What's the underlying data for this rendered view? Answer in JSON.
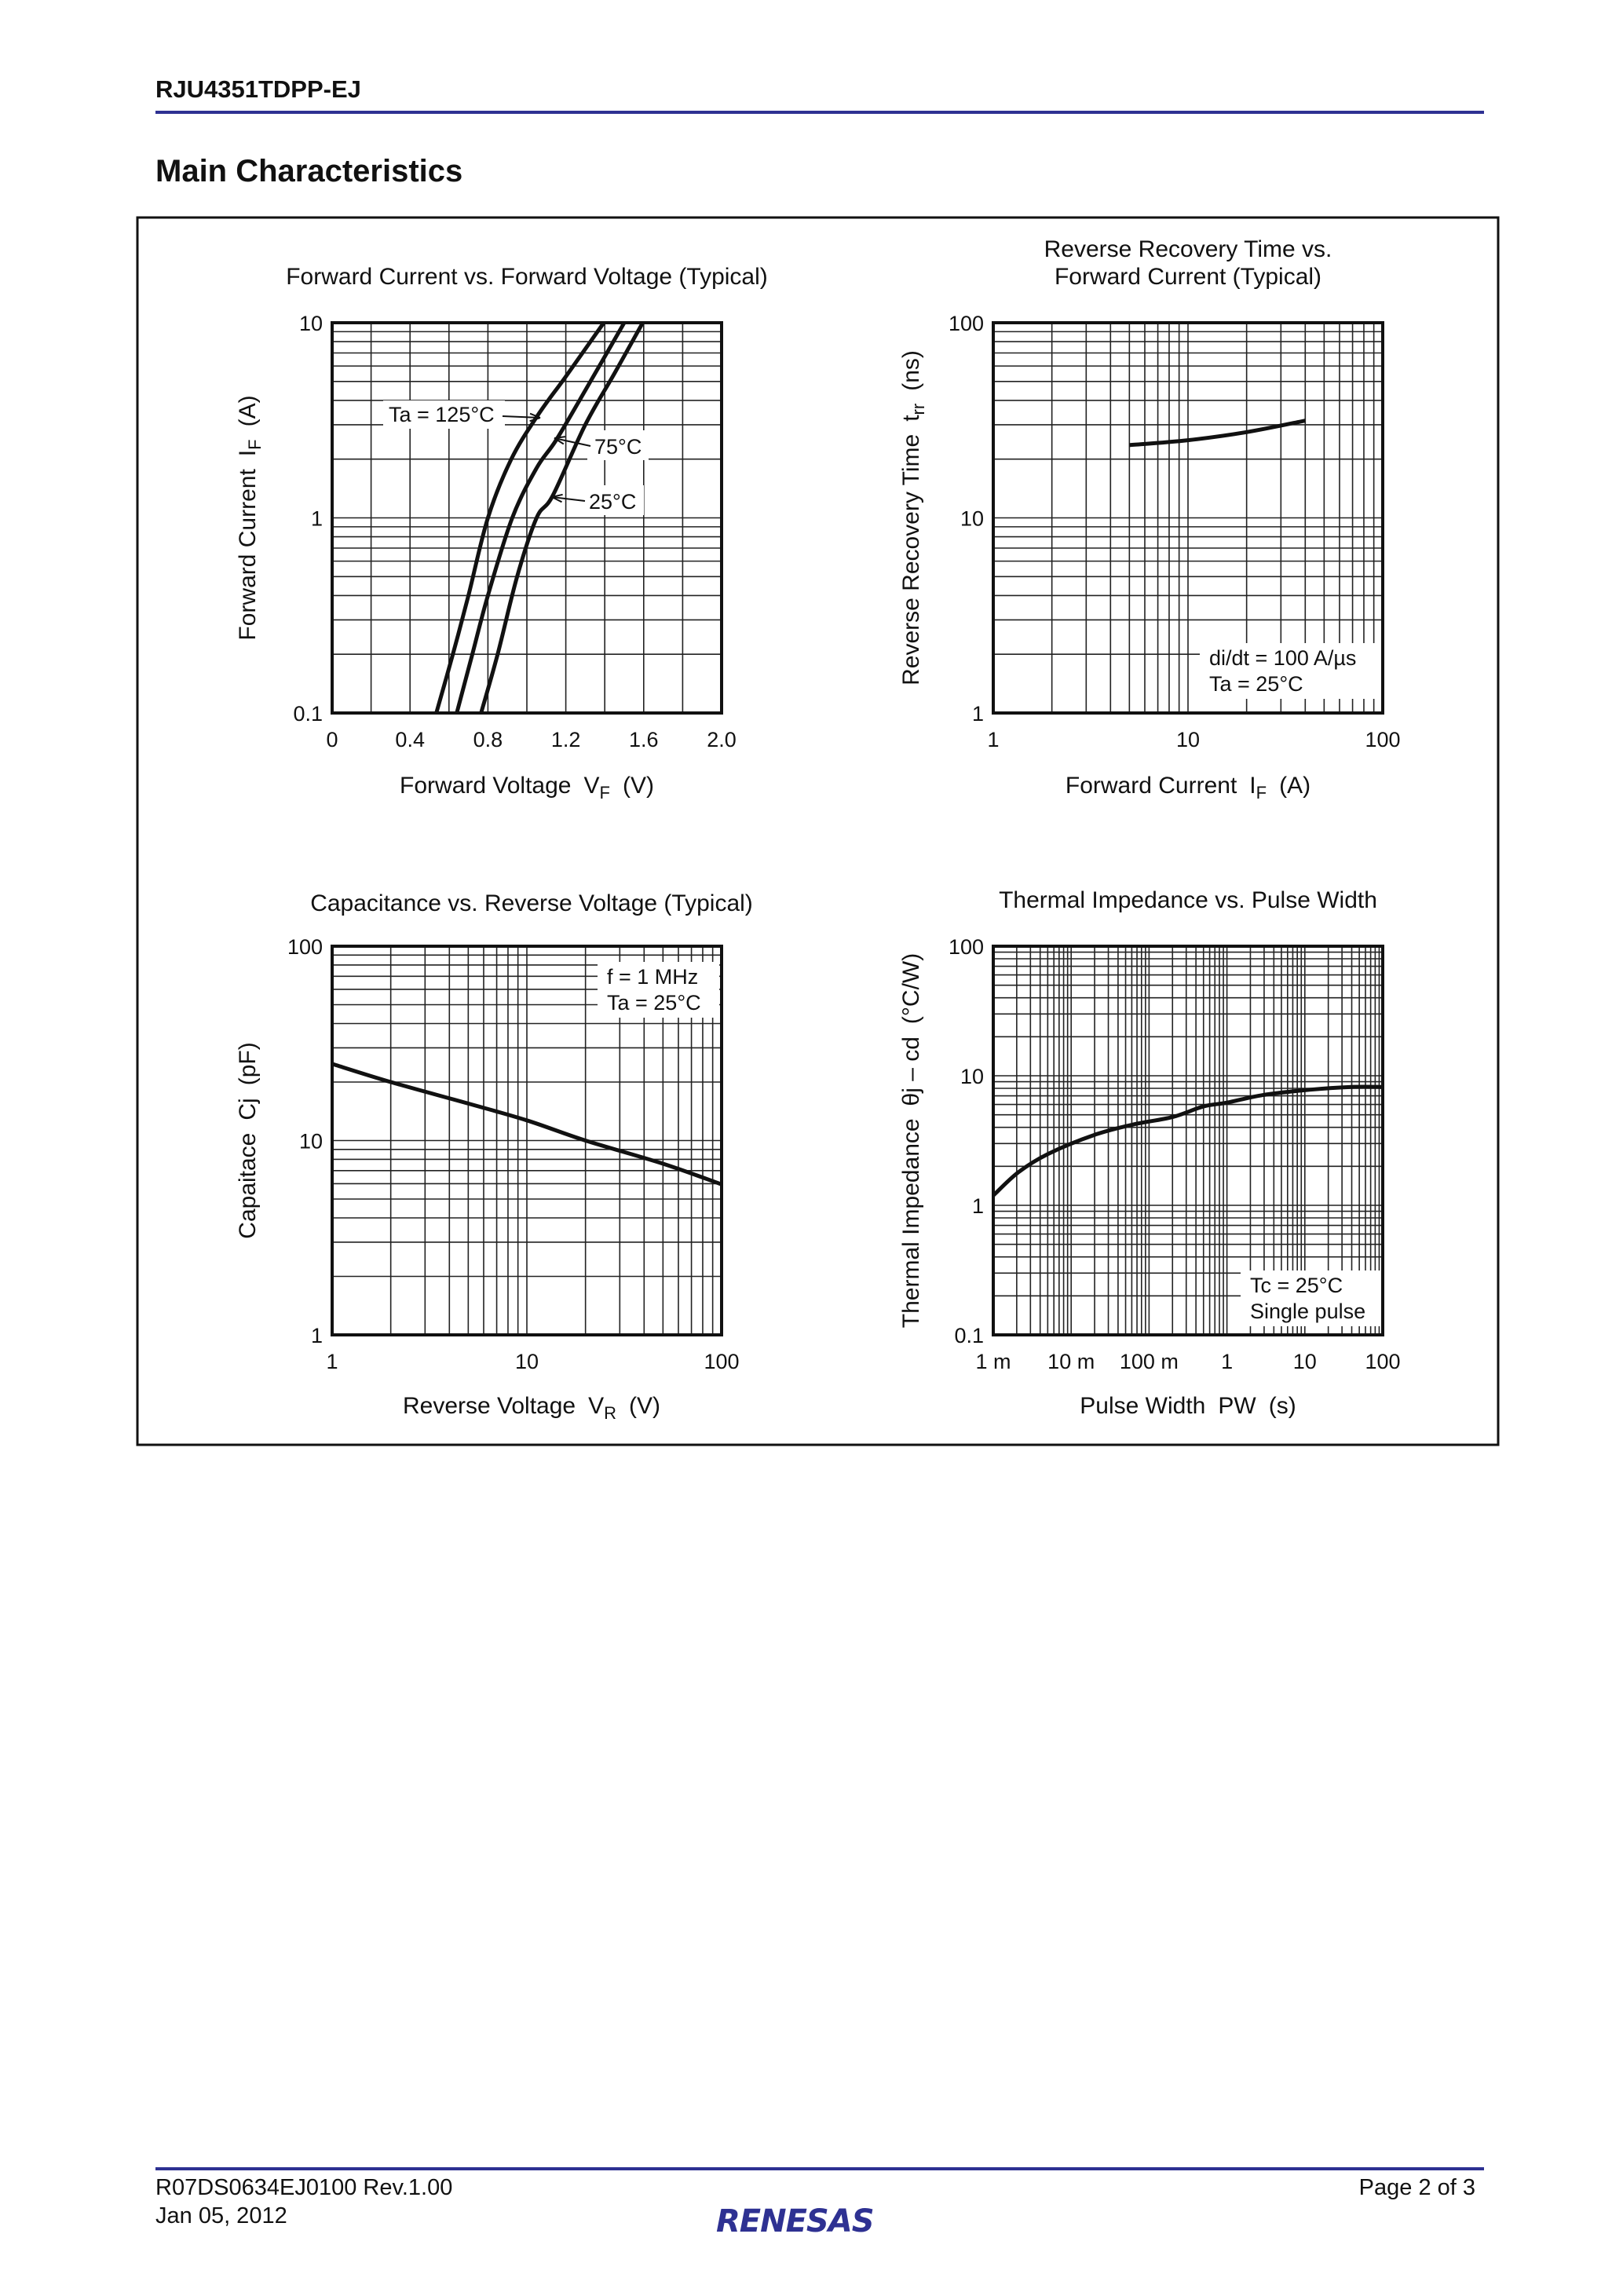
{
  "header": {
    "part_number": "RJU4351TDPP-EJ",
    "section_title": "Main Characteristics"
  },
  "footer": {
    "doc_number": "R07DS0634EJ0100  Rev.1.00",
    "date": "Jan 05, 2012",
    "page": "Page 2 of 3",
    "logo": "RENESAS"
  },
  "colors": {
    "brand_blue": "#2e3192",
    "ink": "#111111"
  },
  "chart_data": [
    {
      "type": "line",
      "title": [
        "Forward Current vs. Forward Voltage (Typical)"
      ],
      "xlabel": {
        "text": "Forward Voltage",
        "symbol": "V",
        "sub": "F",
        "unit": "(V)"
      },
      "ylabel": {
        "text": "Forward Current",
        "symbol": "I",
        "sub": "F",
        "unit": "(A)"
      },
      "xscale": "linear",
      "yscale": "log",
      "xlim": [
        0,
        2.0
      ],
      "ylim": [
        0.1,
        10
      ],
      "xticks": [
        {
          "v": 0,
          "label": "0"
        },
        {
          "v": 0.4,
          "label": "0.4"
        },
        {
          "v": 0.8,
          "label": "0.8"
        },
        {
          "v": 1.2,
          "label": "1.2"
        },
        {
          "v": 1.6,
          "label": "1.6"
        },
        {
          "v": 2.0,
          "label": "2.0"
        }
      ],
      "yticks": [
        {
          "v": 0.1,
          "label": "0.1"
        },
        {
          "v": 1,
          "label": "1"
        },
        {
          "v": 10,
          "label": "10"
        }
      ],
      "grid": true,
      "series": [
        {
          "name": "Ta = 125°C",
          "x": [
            0.535,
            0.62,
            0.7,
            0.8,
            0.92,
            1.06,
            1.2,
            1.395
          ],
          "y": [
            0.1,
            0.2,
            0.4,
            1,
            2,
            3.4,
            5.3,
            10
          ]
        },
        {
          "name": "75°C",
          "x": [
            0.64,
            0.72,
            0.8,
            0.925,
            1.05,
            1.15,
            1.3,
            1.5
          ],
          "y": [
            0.1,
            0.2,
            0.4,
            1,
            1.8,
            2.5,
            4.5,
            10
          ]
        },
        {
          "name": "25°C",
          "x": [
            0.765,
            0.85,
            0.95,
            1.05,
            1.133,
            1.3,
            1.45,
            1.595
          ],
          "y": [
            0.1,
            0.2,
            0.5,
            1,
            1.3,
            3,
            5.5,
            10
          ]
        }
      ],
      "annotations": []
    },
    {
      "type": "line",
      "title": [
        "Reverse Recovery Time vs.",
        "Forward Current (Typical)"
      ],
      "xlabel": {
        "text": "Forward Current",
        "symbol": "I",
        "sub": "F",
        "unit": "(A)"
      },
      "ylabel": {
        "text": "Reverse Recovery Time",
        "symbol": "t",
        "sub": "rr",
        "unit": "(ns)"
      },
      "xscale": "log",
      "yscale": "log",
      "xlim": [
        1,
        100
      ],
      "ylim": [
        1,
        100
      ],
      "xticks": [
        {
          "v": 1,
          "label": "1"
        },
        {
          "v": 10,
          "label": "10"
        },
        {
          "v": 100,
          "label": "100"
        }
      ],
      "yticks": [
        {
          "v": 1,
          "label": "1"
        },
        {
          "v": 10,
          "label": "10"
        },
        {
          "v": 100,
          "label": "100"
        }
      ],
      "grid": true,
      "series": [
        {
          "x": [
            5,
            10,
            20,
            40
          ],
          "y": [
            23.6,
            25,
            27.5,
            31.5
          ]
        }
      ],
      "annotations": [
        "di/dt = 100 A/µs",
        "Ta = 25°C"
      ]
    },
    {
      "type": "line",
      "title": [
        "Capacitance vs. Reverse Voltage (Typical)"
      ],
      "xlabel": {
        "text": "Reverse Voltage",
        "symbol": "V",
        "sub": "R",
        "unit": "(V)"
      },
      "ylabel": {
        "text": "Capaitace",
        "symbol": "Cj",
        "sub": "",
        "unit": "(pF)"
      },
      "xscale": "log",
      "yscale": "log",
      "xlim": [
        1,
        100
      ],
      "ylim": [
        1,
        100
      ],
      "xticks": [
        {
          "v": 1,
          "label": "1"
        },
        {
          "v": 10,
          "label": "10"
        },
        {
          "v": 100,
          "label": "100"
        }
      ],
      "yticks": [
        {
          "v": 1,
          "label": "1"
        },
        {
          "v": 10,
          "label": "10"
        },
        {
          "v": 100,
          "label": "100"
        }
      ],
      "grid": true,
      "series": [
        {
          "x": [
            1,
            2,
            5,
            10,
            20,
            50,
            100
          ],
          "y": [
            24.8,
            20,
            15.5,
            12.7,
            10,
            7.6,
            5.95
          ]
        }
      ],
      "annotations": [
        "f = 1 MHz",
        "Ta = 25°C"
      ]
    },
    {
      "type": "line",
      "title": [
        "Thermal Impedance vs. Pulse Width"
      ],
      "xlabel": {
        "text": "Pulse Width",
        "symbol": "PW",
        "sub": "",
        "unit": "(s)"
      },
      "ylabel": {
        "text": "Thermal Impedance",
        "symbol": "θj – cd",
        "sub": "",
        "unit": "(°C/W)"
      },
      "xscale": "log",
      "yscale": "log",
      "xlim": [
        0.001,
        100
      ],
      "ylim": [
        0.1,
        100
      ],
      "xticks": [
        {
          "v": 0.001,
          "label": "1 m"
        },
        {
          "v": 0.01,
          "label": "10 m"
        },
        {
          "v": 0.1,
          "label": "100 m"
        },
        {
          "v": 1,
          "label": "1"
        },
        {
          "v": 10,
          "label": "10"
        },
        {
          "v": 100,
          "label": "100"
        }
      ],
      "yticks": [
        {
          "v": 0.1,
          "label": "0.1"
        },
        {
          "v": 1,
          "label": "1"
        },
        {
          "v": 10,
          "label": "10"
        },
        {
          "v": 100,
          "label": "100"
        }
      ],
      "grid": true,
      "series": [
        {
          "x": [
            0.001,
            0.0021,
            0.0051,
            0.02,
            0.062,
            0.2,
            0.5,
            1,
            2.9,
            11.5,
            40,
            100
          ],
          "y": [
            1.19,
            1.8,
            2.5,
            3.5,
            4.2,
            4.8,
            5.8,
            6.2,
            7.1,
            7.8,
            8.2,
            8.2
          ]
        }
      ],
      "annotations": [
        "Tc = 25°C",
        "Single pulse"
      ]
    }
  ]
}
